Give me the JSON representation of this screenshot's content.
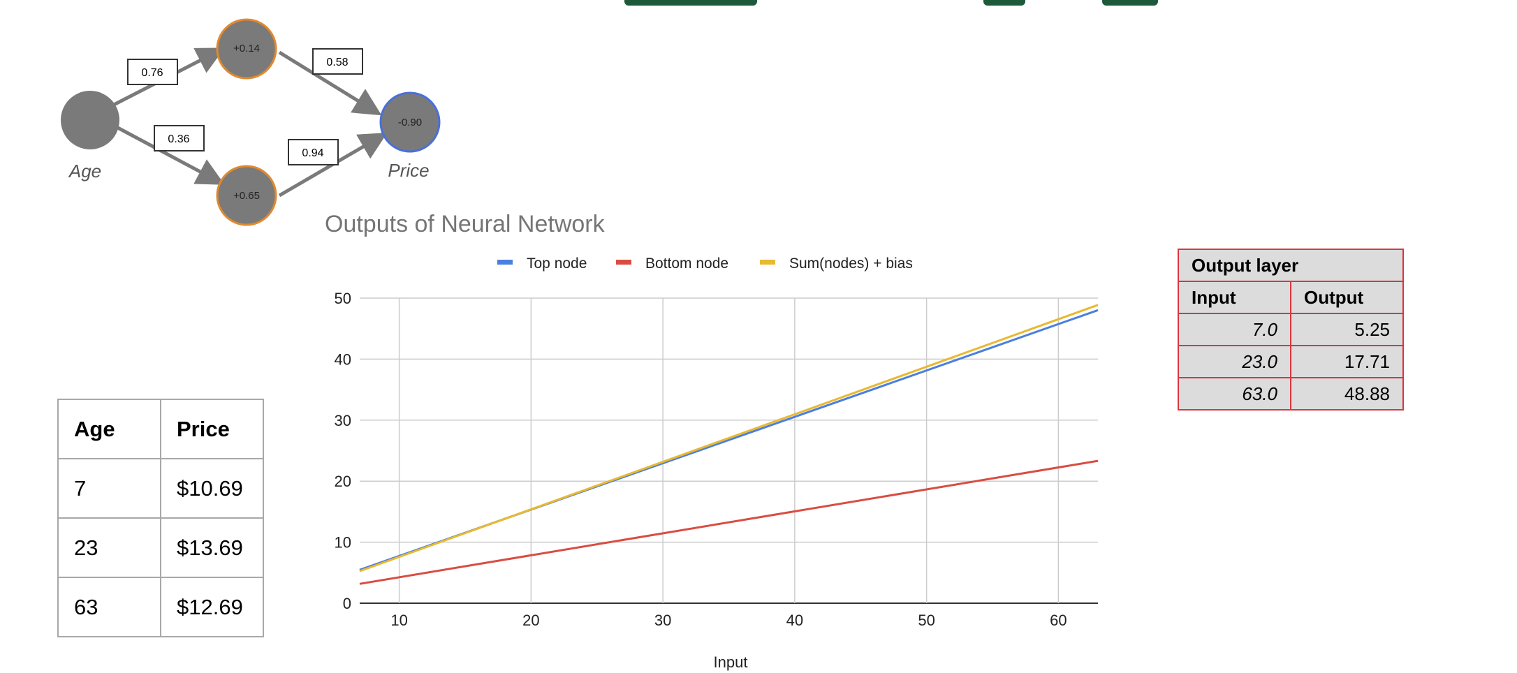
{
  "network": {
    "input_label": "Age",
    "output_label": "Price",
    "top_bias": "+0.14",
    "bottom_bias": "+0.65",
    "output_bias": "-0.90",
    "weight_input_top": "0.76",
    "weight_input_bottom": "0.36",
    "weight_top_output": "0.58",
    "weight_bottom_output": "0.94"
  },
  "chart_data": {
    "type": "line",
    "title": "Outputs of Neural Network",
    "xlabel": "Input",
    "ylabel": "",
    "xlim": [
      7,
      63
    ],
    "ylim": [
      0,
      50
    ],
    "x_ticks": [
      10,
      20,
      30,
      40,
      50,
      60
    ],
    "y_ticks": [
      0,
      10,
      20,
      30,
      40,
      50
    ],
    "grid": true,
    "legend_position": "top",
    "series": [
      {
        "name": "Top node",
        "color": "#4a7fe0",
        "x": [
          7,
          63
        ],
        "y": [
          5.46,
          48.02
        ]
      },
      {
        "name": "Bottom node",
        "color": "#d94c43",
        "x": [
          7,
          63
        ],
        "y": [
          3.17,
          23.33
        ]
      },
      {
        "name": "Sum(nodes) + bias",
        "color": "#e8b931",
        "x": [
          7,
          63
        ],
        "y": [
          5.25,
          48.88
        ]
      }
    ]
  },
  "data_table": {
    "headers": [
      "Age",
      "Price"
    ],
    "rows": [
      [
        "7",
        "$10.69"
      ],
      [
        "23",
        "$13.69"
      ],
      [
        "63",
        "$12.69"
      ]
    ]
  },
  "output_table": {
    "title": "Output layer",
    "headers": [
      "Input",
      "Output"
    ],
    "rows": [
      [
        "7.0",
        "5.25"
      ],
      [
        "23.0",
        "17.71"
      ],
      [
        "63.0",
        "48.88"
      ]
    ]
  },
  "colors": {
    "node_fill": "#7a7a7a",
    "hidden_node_border": "#e0892f",
    "output_node_border": "#4a6fd8",
    "table_border_red": "#d9363e",
    "header_strip": "#1d5a3a"
  }
}
